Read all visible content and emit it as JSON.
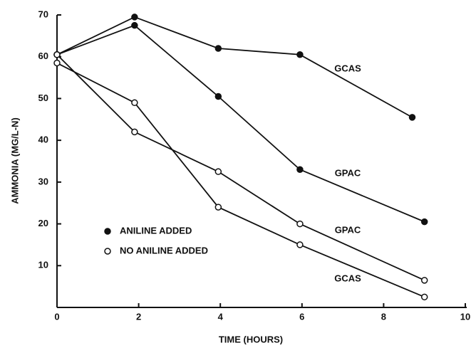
{
  "chart_data": {
    "type": "line",
    "x_label": "TIME (HOURS)",
    "y_label": "AMMONIA (MG/L-N)",
    "xlim": [
      0,
      10
    ],
    "ylim": [
      0,
      70
    ],
    "xticks": [
      0,
      2,
      4,
      6,
      8,
      10
    ],
    "yticks": [
      10,
      20,
      30,
      40,
      50,
      60,
      70
    ],
    "grid": false,
    "color": "#111111",
    "series": [
      {
        "name": "GCAS",
        "marker": "filled",
        "x": [
          0,
          1.9,
          3.95,
          5.95,
          8.7
        ],
        "values": [
          60.5,
          69.5,
          62,
          60.5,
          45.5
        ]
      },
      {
        "name": "GPAC",
        "marker": "filled",
        "x": [
          0,
          1.9,
          3.95,
          5.95,
          9
        ],
        "values": [
          60.5,
          67.5,
          50.5,
          33,
          20.5
        ]
      },
      {
        "name": "GPAC",
        "marker": "open",
        "x": [
          0,
          1.9,
          3.95,
          5.95,
          9
        ],
        "values": [
          60.5,
          42,
          32.5,
          20,
          6.5
        ]
      },
      {
        "name": "GCAS",
        "marker": "open",
        "x": [
          0,
          1.9,
          3.95,
          5.95,
          9
        ],
        "values": [
          58.5,
          49,
          24,
          15,
          2.5
        ]
      }
    ],
    "legend": [
      {
        "label": "ANILINE ADDED",
        "marker": "filled"
      },
      {
        "label": "NO ANILINE ADDED",
        "marker": "open"
      }
    ]
  }
}
